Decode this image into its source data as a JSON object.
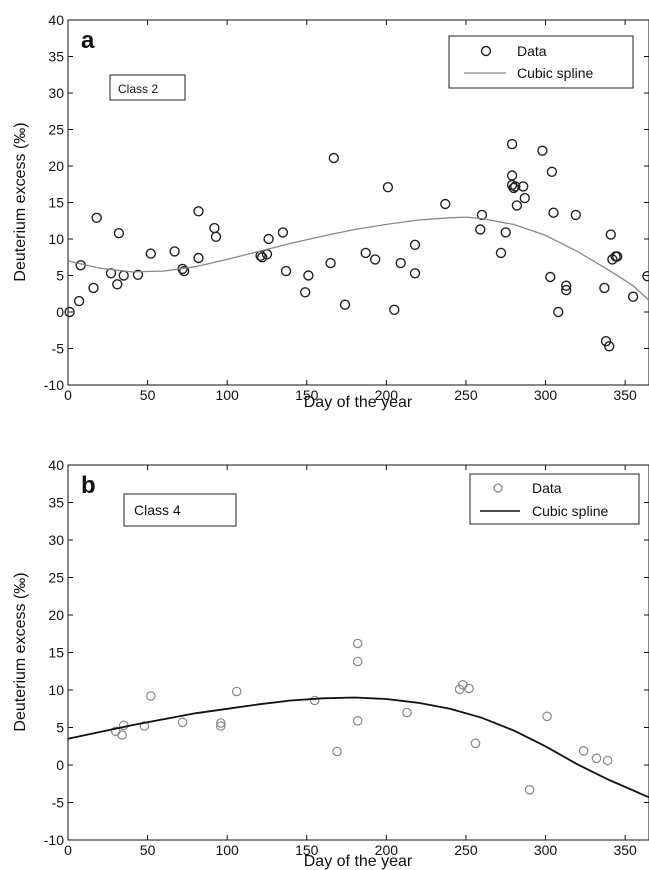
{
  "chart_data": [
    {
      "type": "scatter",
      "panel_label": "a",
      "annotation": "Class 2",
      "xlabel": "Day of the year",
      "ylabel": "Deuterium excess (‰)",
      "xlim": [
        0,
        365
      ],
      "ylim": [
        -10,
        40
      ],
      "xticks": [
        0,
        50,
        100,
        150,
        200,
        250,
        300,
        350
      ],
      "yticks": [
        -10,
        -5,
        0,
        5,
        10,
        15,
        20,
        25,
        30,
        35,
        40
      ],
      "grid": false,
      "legend_position": "top-right",
      "series": [
        {
          "name": "Data",
          "kind": "points",
          "marker": "open-circle",
          "color": "#222222",
          "points": [
            [
              1,
              0
            ],
            [
              7,
              1.5
            ],
            [
              8,
              6.4
            ],
            [
              16,
              3.3
            ],
            [
              18,
              12.9
            ],
            [
              27,
              5.3
            ],
            [
              31,
              3.8
            ],
            [
              32,
              10.8
            ],
            [
              35,
              5.0
            ],
            [
              44,
              5.1
            ],
            [
              52,
              8.0
            ],
            [
              67,
              8.3
            ],
            [
              72,
              5.9
            ],
            [
              73,
              5.6
            ],
            [
              82,
              7.4
            ],
            [
              82,
              13.8
            ],
            [
              92,
              11.5
            ],
            [
              93,
              10.3
            ],
            [
              121,
              7.7
            ],
            [
              122,
              7.5
            ],
            [
              125,
              7.9
            ],
            [
              126,
              10.0
            ],
            [
              135,
              10.9
            ],
            [
              137,
              5.6
            ],
            [
              149,
              2.7
            ],
            [
              151,
              5.0
            ],
            [
              165,
              6.7
            ],
            [
              167,
              21.1
            ],
            [
              174,
              1.0
            ],
            [
              187,
              8.1
            ],
            [
              193,
              7.2
            ],
            [
              201,
              17.1
            ],
            [
              205,
              0.3
            ],
            [
              209,
              6.7
            ],
            [
              218,
              9.2
            ],
            [
              218,
              5.3
            ],
            [
              237,
              14.8
            ],
            [
              259,
              11.3
            ],
            [
              260,
              13.3
            ],
            [
              272,
              8.1
            ],
            [
              275,
              10.9
            ],
            [
              279,
              23.0
            ],
            [
              279,
              18.7
            ],
            [
              279,
              17.4
            ],
            [
              280,
              17.0
            ],
            [
              281,
              17.2
            ],
            [
              282,
              14.6
            ],
            [
              286,
              17.2
            ],
            [
              287,
              15.6
            ],
            [
              298,
              22.1
            ],
            [
              303,
              4.8
            ],
            [
              304,
              19.2
            ],
            [
              305,
              13.6
            ],
            [
              308,
              0.0
            ],
            [
              313,
              3.0
            ],
            [
              313,
              3.6
            ],
            [
              319,
              13.3
            ],
            [
              337,
              3.3
            ],
            [
              338,
              -4.0
            ],
            [
              340,
              -4.7
            ],
            [
              341,
              10.6
            ],
            [
              342,
              7.2
            ],
            [
              344,
              7.6
            ],
            [
              345,
              7.6
            ],
            [
              355,
              2.1
            ],
            [
              364,
              4.9
            ]
          ]
        },
        {
          "name": "Cubic spline",
          "kind": "line",
          "color": "#888888",
          "points": [
            [
              0,
              7.0
            ],
            [
              20,
              6.0
            ],
            [
              40,
              5.5
            ],
            [
              60,
              5.6
            ],
            [
              80,
              6.2
            ],
            [
              100,
              7.2
            ],
            [
              120,
              8.3
            ],
            [
              140,
              9.4
            ],
            [
              160,
              10.4
            ],
            [
              180,
              11.3
            ],
            [
              200,
              12.0
            ],
            [
              220,
              12.6
            ],
            [
              240,
              12.9
            ],
            [
              250,
              13.0
            ],
            [
              260,
              12.8
            ],
            [
              280,
              12.0
            ],
            [
              300,
              10.5
            ],
            [
              320,
              8.3
            ],
            [
              340,
              5.7
            ],
            [
              355,
              3.6
            ],
            [
              365,
              1.6
            ]
          ]
        }
      ]
    },
    {
      "type": "scatter",
      "panel_label": "b",
      "annotation": "Class 4",
      "xlabel": "Day of the year",
      "ylabel": "Deuterium excess (‰)",
      "xlim": [
        0,
        365
      ],
      "ylim": [
        -10,
        40
      ],
      "xticks": [
        0,
        50,
        100,
        150,
        200,
        250,
        300,
        350
      ],
      "yticks": [
        -10,
        -5,
        0,
        5,
        10,
        15,
        20,
        25,
        30,
        35,
        40
      ],
      "grid": false,
      "legend_position": "top-right",
      "series": [
        {
          "name": "Data",
          "kind": "points",
          "marker": "open-circle",
          "color": "#888888",
          "points": [
            [
              30,
              4.5
            ],
            [
              34,
              4.0
            ],
            [
              35,
              5.3
            ],
            [
              48,
              5.2
            ],
            [
              52,
              9.2
            ],
            [
              72,
              5.7
            ],
            [
              96,
              5.2
            ],
            [
              96,
              5.6
            ],
            [
              106,
              9.8
            ],
            [
              155,
              8.6
            ],
            [
              169,
              1.8
            ],
            [
              182,
              16.2
            ],
            [
              182,
              13.8
            ],
            [
              182,
              5.9
            ],
            [
              213,
              7.0
            ],
            [
              246,
              10.1
            ],
            [
              248,
              10.7
            ],
            [
              252,
              10.2
            ],
            [
              256,
              2.9
            ],
            [
              290,
              -3.3
            ],
            [
              301,
              6.5
            ],
            [
              324,
              1.9
            ],
            [
              332,
              0.9
            ],
            [
              339,
              0.6
            ]
          ]
        },
        {
          "name": "Cubic spline",
          "kind": "line",
          "color": "#111111",
          "points": [
            [
              0,
              3.5
            ],
            [
              20,
              4.4
            ],
            [
              40,
              5.3
            ],
            [
              60,
              6.1
            ],
            [
              80,
              6.9
            ],
            [
              100,
              7.5
            ],
            [
              120,
              8.1
            ],
            [
              140,
              8.6
            ],
            [
              160,
              8.9
            ],
            [
              180,
              9.0
            ],
            [
              200,
              8.8
            ],
            [
              220,
              8.3
            ],
            [
              240,
              7.5
            ],
            [
              260,
              6.3
            ],
            [
              280,
              4.6
            ],
            [
              300,
              2.5
            ],
            [
              320,
              0.1
            ],
            [
              340,
              -2.0
            ],
            [
              365,
              -4.3
            ]
          ]
        }
      ]
    }
  ]
}
